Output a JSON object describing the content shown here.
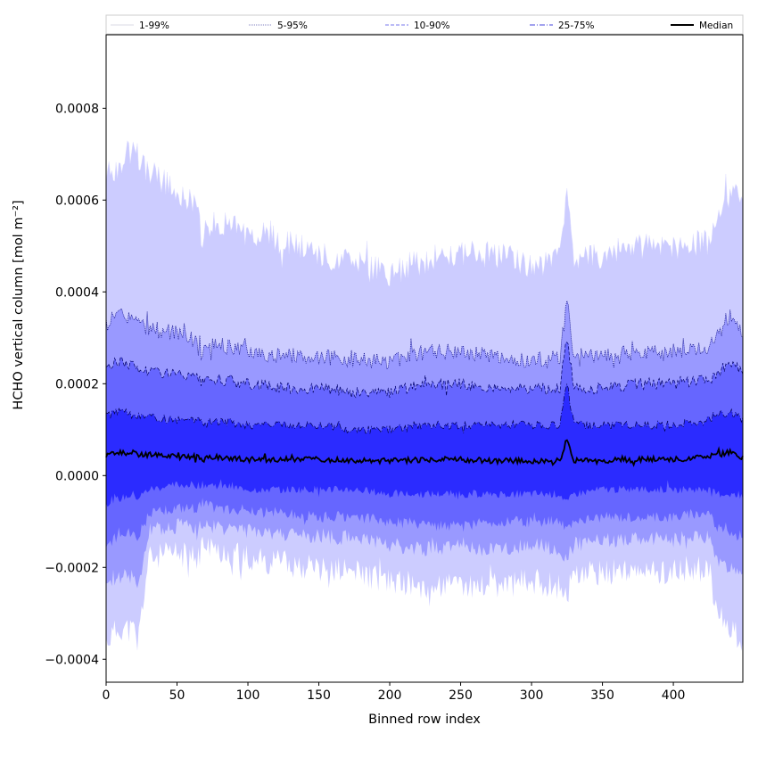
{
  "chart_data": {
    "type": "area",
    "xlabel": "Binned row index",
    "ylabel": "HCHO vertical column [mol m⁻²]",
    "xlim": [
      0,
      449
    ],
    "ylim": [
      -0.00045,
      0.00096
    ],
    "x_ticks": [
      0,
      50,
      100,
      150,
      200,
      250,
      300,
      350,
      400
    ],
    "x_tick_labels": [
      "0",
      "50",
      "100",
      "150",
      "200",
      "250",
      "300",
      "350",
      "400"
    ],
    "y_ticks": [
      -0.0004,
      -0.0002,
      0.0,
      0.0002,
      0.0004,
      0.0006,
      0.0008
    ],
    "y_tick_labels": [
      "−0.0004",
      "−0.0002",
      "0.0000",
      "0.0002",
      "0.0004",
      "0.0006",
      "0.0008"
    ],
    "grid": false,
    "legend_position": "top (single row above plot)",
    "legend": [
      {
        "label": "1-99%",
        "color": "#ccccff",
        "style": "thin solid"
      },
      {
        "label": "5-95%",
        "color": "#3030b0",
        "style": "thin dotted"
      },
      {
        "label": "10-90%",
        "color": "#7777ee",
        "style": "dashed"
      },
      {
        "label": "25-75%",
        "color": "#4444dd",
        "style": "dashdot"
      },
      {
        "label": "Median",
        "color": "#000000",
        "style": "solid thick"
      }
    ],
    "band_colors": [
      "#ccccff",
      "#9999ff",
      "#6666ff",
      "#2b2bff"
    ],
    "x": [
      0,
      10,
      20,
      22,
      30,
      50,
      65,
      68,
      75,
      100,
      125,
      150,
      175,
      200,
      225,
      250,
      275,
      300,
      320,
      325,
      330,
      350,
      375,
      400,
      425,
      430,
      440,
      449
    ],
    "series": [
      {
        "name": "1-99%",
        "lower": [
          -0.00036,
          -0.00033,
          -0.00034,
          -0.00037,
          -0.00018,
          -0.00017,
          -0.00018,
          -0.00015,
          -0.00016,
          -0.00018,
          -0.00019,
          -0.0002,
          -0.00021,
          -0.00023,
          -0.00024,
          -0.00024,
          -0.00024,
          -0.00023,
          -0.00024,
          -0.00026,
          -0.00022,
          -0.00021,
          -0.00021,
          -0.00021,
          -0.0002,
          -0.0003,
          -0.00033,
          -0.00036
        ],
        "upper": [
          0.00065,
          0.00068,
          0.00072,
          0.0007,
          0.00066,
          0.00062,
          0.00059,
          0.00052,
          0.00055,
          0.00053,
          0.00051,
          0.00048,
          0.00046,
          0.00044,
          0.00047,
          0.00049,
          0.00048,
          0.00046,
          0.00047,
          0.00065,
          0.00047,
          0.00048,
          0.0005,
          0.0005,
          0.00051,
          0.00055,
          0.00062,
          0.00061
        ]
      },
      {
        "name": "5-95%",
        "lower": [
          -0.00025,
          -0.00022,
          -0.00022,
          -0.00025,
          -0.00012,
          -0.00011,
          -0.00011,
          -0.0001,
          -0.00011,
          -0.00012,
          -0.00013,
          -0.00013,
          -0.00014,
          -0.00015,
          -0.00016,
          -0.00016,
          -0.00016,
          -0.00015,
          -0.00016,
          -0.00018,
          -0.00015,
          -0.00014,
          -0.00014,
          -0.00014,
          -0.00013,
          -0.00018,
          -0.0002,
          -0.00022
        ],
        "upper": [
          0.00033,
          0.00035,
          0.00034,
          0.00033,
          0.00032,
          0.00031,
          0.00029,
          0.00027,
          0.00029,
          0.00027,
          0.00026,
          0.00026,
          0.00025,
          0.00025,
          0.00027,
          0.00027,
          0.00026,
          0.00025,
          0.00026,
          0.00038,
          0.00026,
          0.00026,
          0.00027,
          0.00027,
          0.00028,
          0.0003,
          0.00035,
          0.00031
        ]
      },
      {
        "name": "10-90%",
        "lower": [
          -0.00015,
          -0.00013,
          -0.00012,
          -0.00014,
          -8e-05,
          -7e-05,
          -7e-05,
          -6e-05,
          -7e-05,
          -8e-05,
          -8e-05,
          -9e-05,
          -9e-05,
          -0.0001,
          -0.00011,
          -0.00011,
          -0.0001,
          -0.0001,
          -0.0001,
          -0.00012,
          -0.0001,
          -9e-05,
          -9e-05,
          -9e-05,
          -8e-05,
          -0.00011,
          -0.00012,
          -0.00013
        ],
        "upper": [
          0.00024,
          0.00025,
          0.00024,
          0.00023,
          0.00023,
          0.00022,
          0.00021,
          0.0002,
          0.00021,
          0.0002,
          0.00019,
          0.00019,
          0.00018,
          0.00018,
          0.0002,
          0.0002,
          0.00019,
          0.00019,
          0.00019,
          0.0003,
          0.00019,
          0.00019,
          0.0002,
          0.0002,
          0.00021,
          0.00022,
          0.00025,
          0.00022
        ]
      },
      {
        "name": "25-75%",
        "lower": [
          -6e-05,
          -5e-05,
          -4e-05,
          -5e-05,
          -3e-05,
          -2e-05,
          -2e-05,
          -2e-05,
          -2e-05,
          -3e-05,
          -3e-05,
          -3e-05,
          -3e-05,
          -4e-05,
          -4e-05,
          -4e-05,
          -4e-05,
          -4e-05,
          -4e-05,
          -6e-05,
          -4e-05,
          -3e-05,
          -3e-05,
          -3e-05,
          -3e-05,
          -4e-05,
          -4e-05,
          -5e-05
        ],
        "upper": [
          0.00013,
          0.00014,
          0.00013,
          0.00013,
          0.00013,
          0.00012,
          0.00012,
          0.00011,
          0.00012,
          0.00011,
          0.00011,
          0.00011,
          0.0001,
          0.0001,
          0.00011,
          0.00011,
          0.00011,
          0.00011,
          0.00011,
          0.0002,
          0.00011,
          0.00011,
          0.00011,
          0.00011,
          0.00012,
          0.00013,
          0.00014,
          0.00012
        ]
      },
      {
        "name": "Median",
        "values": [
          4.5e-05,
          5e-05,
          5e-05,
          4.5e-05,
          4.5e-05,
          4.5e-05,
          4e-05,
          3.5e-05,
          4e-05,
          3.5e-05,
          3.5e-05,
          3.5e-05,
          3.2e-05,
          3.2e-05,
          3.5e-05,
          3.5e-05,
          3.2e-05,
          3.2e-05,
          3.2e-05,
          8e-05,
          3.2e-05,
          3.2e-05,
          3.5e-05,
          3.5e-05,
          4e-05,
          4.5e-05,
          5e-05,
          4e-05
        ]
      }
    ]
  }
}
